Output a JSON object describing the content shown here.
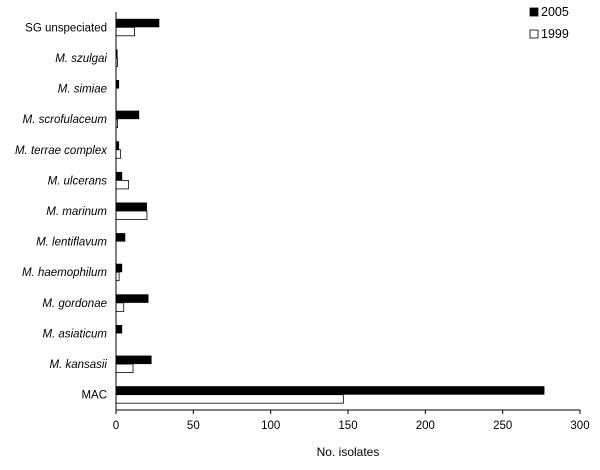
{
  "chart_data": {
    "type": "bar",
    "orientation": "horizontal",
    "categories": [
      {
        "label": "SG unspeciated",
        "italic": false
      },
      {
        "label": "M. szulgai",
        "italic": true
      },
      {
        "label": "M. simiae",
        "italic": true
      },
      {
        "label": "M. scrofulaceum",
        "italic": true
      },
      {
        "label": "M. terrae complex",
        "italic": true
      },
      {
        "label": "M. ulcerans",
        "italic": true
      },
      {
        "label": "M. marinum",
        "italic": true
      },
      {
        "label": "M. lentiflavum",
        "italic": true
      },
      {
        "label": "M. haemophilum",
        "italic": true
      },
      {
        "label": "M. gordonae",
        "italic": true
      },
      {
        "label": "M. asiaticum",
        "italic": true
      },
      {
        "label": "M. kansasii",
        "italic": true
      },
      {
        "label": "MAC",
        "italic": false
      }
    ],
    "series": [
      {
        "name": "2005",
        "color": "#000000",
        "values": [
          28,
          1,
          2,
          15,
          2,
          4,
          20,
          6,
          4,
          21,
          4,
          23,
          277
        ]
      },
      {
        "name": "1999",
        "color": "#ffffff",
        "values": [
          12,
          1,
          0,
          1,
          3,
          8,
          20,
          0,
          2,
          5,
          0,
          11,
          147
        ]
      }
    ],
    "xlabel": "No. isolates",
    "xlim": [
      0,
      300
    ],
    "xticks": [
      0,
      50,
      100,
      150,
      200,
      250,
      300
    ],
    "grid": false,
    "legend_position": "top-right"
  }
}
